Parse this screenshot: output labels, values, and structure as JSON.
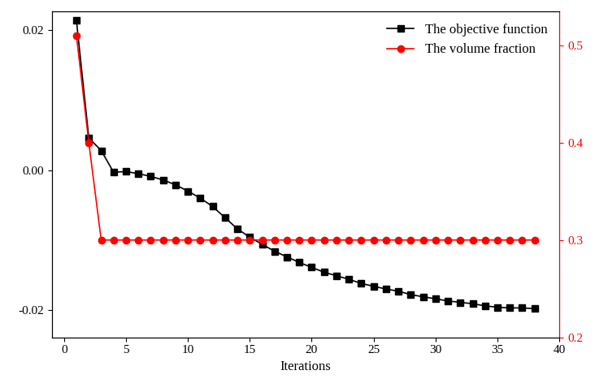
{
  "chart_data": {
    "type": "line",
    "xlabel": "Iterations",
    "x": [
      1,
      2,
      3,
      4,
      5,
      6,
      7,
      8,
      9,
      10,
      11,
      12,
      13,
      14,
      15,
      16,
      17,
      18,
      19,
      20,
      21,
      22,
      23,
      24,
      25,
      26,
      27,
      28,
      29,
      30,
      31,
      32,
      33,
      34,
      35,
      36,
      37,
      38
    ],
    "series": [
      {
        "name": "The objective function",
        "color": "#000000",
        "marker": "square",
        "line_style": "solid",
        "values": [
          0.0214,
          0.0046,
          0.0028,
          -0.0003,
          -0.0002,
          -0.0005,
          -0.0009,
          -0.0014,
          -0.0021,
          -0.003,
          -0.004,
          -0.0052,
          -0.0068,
          -0.0084,
          -0.0096,
          -0.0106,
          -0.0116,
          -0.0124,
          -0.0132,
          -0.0139,
          -0.0146,
          -0.0151,
          -0.0156,
          -0.0162,
          -0.0166,
          -0.017,
          -0.0173,
          -0.0178,
          -0.0181,
          -0.0184,
          -0.0187,
          -0.0189,
          -0.0191,
          -0.0194,
          -0.0196,
          -0.0197,
          -0.0197,
          -0.0198
        ]
      },
      {
        "name": "The volume fraction",
        "color": "#ff0000",
        "marker": "circle",
        "line_style": "solid",
        "axis": "y2",
        "values": [
          0.51,
          0.4,
          0.3,
          0.3,
          0.3,
          0.3,
          0.3,
          0.3,
          0.3,
          0.3,
          0.3,
          0.3,
          0.3,
          0.3,
          0.3,
          0.3,
          0.3,
          0.3,
          0.3,
          0.3,
          0.3,
          0.3,
          0.3,
          0.3,
          0.3,
          0.3,
          0.3,
          0.3,
          0.3,
          0.3,
          0.3,
          0.3,
          0.3,
          0.3,
          0.3,
          0.3,
          0.3,
          0.3
        ]
      }
    ],
    "xlim": [
      -1,
      40
    ],
    "xticks": [
      0,
      5,
      10,
      15,
      20,
      25,
      30,
      35,
      40
    ],
    "ylim": [
      -0.0239,
      0.0227
    ],
    "yticks": [
      -0.02,
      {
        "value": 0,
        "label": "0.00"
      },
      0.02
    ],
    "y2lim": [
      0.2,
      0.535
    ],
    "y2ticks": [
      0.2,
      0.3,
      0.4,
      0.5
    ],
    "legend": "upper right"
  }
}
